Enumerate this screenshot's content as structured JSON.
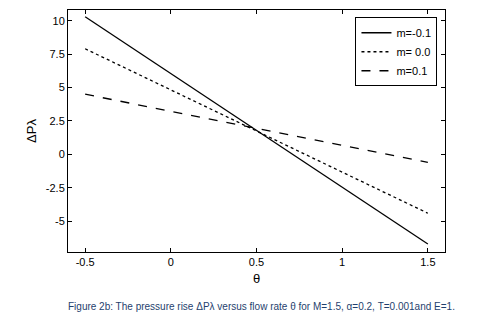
{
  "chart_data": {
    "type": "line",
    "title": "Figure 2b: The pressure rise ΔPλ versus flow rate θ for M=1.5, α=0.2, T=0.001and E=1.",
    "x_label": "θ",
    "y_label": "ΔPλ",
    "x": [
      -0.5,
      0.5,
      1.5
    ],
    "series": [
      {
        "name": "m=-0.1",
        "color": "#000000",
        "line_style": "solid",
        "values": [
          10.3,
          1.8,
          -6.7
        ]
      },
      {
        "name": "m= 0.0",
        "color": "#000000",
        "line_style": "dotted",
        "values": [
          7.9,
          1.75,
          -4.4
        ]
      },
      {
        "name": "m=0.1",
        "color": "#000000",
        "line_style": "dashed",
        "values": [
          4.5,
          1.95,
          -0.6
        ]
      }
    ],
    "xlim": [
      -0.6,
      1.6
    ],
    "xticks": [
      -0.5,
      0,
      0.5,
      1,
      1.5
    ],
    "ylim": [
      -7.3,
      10.8
    ],
    "yticks": [
      -5,
      -2.5,
      0,
      2.5,
      5,
      7.5,
      10
    ],
    "grid": false,
    "legend": "upper right"
  }
}
